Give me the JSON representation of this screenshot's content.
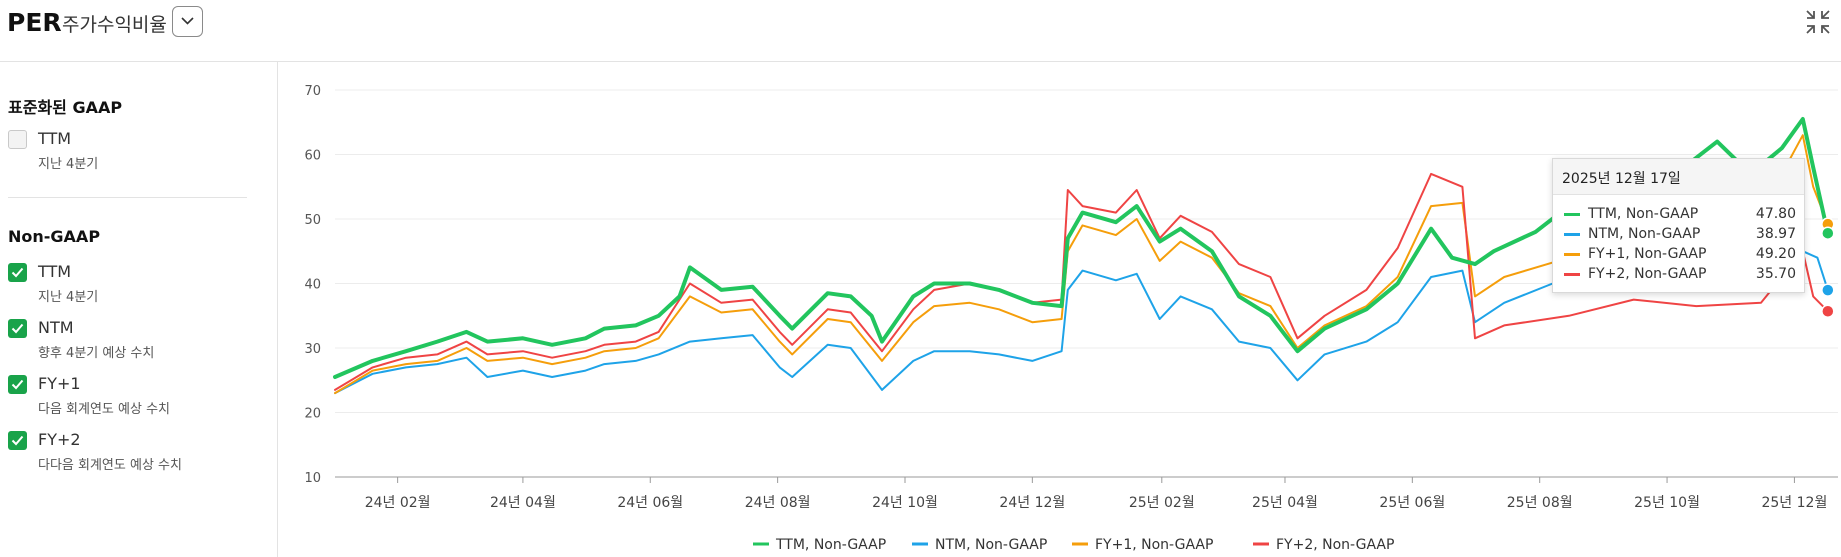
{
  "header": {
    "title": "PER",
    "subtitle": "주가수익비율"
  },
  "sidebar": {
    "groups": [
      {
        "title": "표준화된 GAAP",
        "options": [
          {
            "label": "TTM",
            "sub": "지난 4분기",
            "checked": false
          }
        ]
      },
      {
        "title": "Non-GAAP",
        "options": [
          {
            "label": "TTM",
            "sub": "지난 4분기",
            "checked": true
          },
          {
            "label": "NTM",
            "sub": "향후 4분기 예상 수치",
            "checked": true
          },
          {
            "label": "FY+1",
            "sub": "다음 회계연도 예상 수치",
            "checked": true
          },
          {
            "label": "FY+2",
            "sub": "다다음 회계연도 예상 수치",
            "checked": true
          }
        ]
      }
    ]
  },
  "tooltip": {
    "date": "2025년 12월 17일",
    "rows": [
      {
        "name": "TTM, Non-GAAP",
        "value": "47.80",
        "color": "#22c55e"
      },
      {
        "name": "NTM, Non-GAAP",
        "value": "38.97",
        "color": "#1ea3e8"
      },
      {
        "name": "FY+1, Non-GAAP",
        "value": "49.20",
        "color": "#f59e0b"
      },
      {
        "name": "FY+2, Non-GAAP",
        "value": "35.70",
        "color": "#ef4444"
      }
    ]
  },
  "chart_data": {
    "type": "line",
    "x_ticks": [
      "24년 02월",
      "24년 04월",
      "24년 06월",
      "24년 08월",
      "24년 10월",
      "24년 12월",
      "25년 02월",
      "25년 04월",
      "25년 06월",
      "25년 08월",
      "25년 10월",
      "25년 12월"
    ],
    "x_tick_dates": [
      "2024-02-01",
      "2024-04-01",
      "2024-06-01",
      "2024-08-01",
      "2024-10-01",
      "2024-12-01",
      "2025-02-01",
      "2025-04-01",
      "2025-06-01",
      "2025-08-01",
      "2025-10-01",
      "2025-12-01"
    ],
    "x_range": [
      "2024-01-02",
      "2025-12-19"
    ],
    "ylim": [
      10,
      70
    ],
    "y_ticks": [
      10,
      20,
      30,
      40,
      50,
      60,
      70
    ],
    "grid": "horizontal",
    "legend_position": "bottom",
    "series": [
      {
        "name": "TTM, Non-GAAP",
        "color": "#22c55e",
        "points": [
          [
            "2024-01-02",
            25.5
          ],
          [
            "2024-01-20",
            28
          ],
          [
            "2024-02-05",
            29.5
          ],
          [
            "2024-02-20",
            31
          ],
          [
            "2024-03-05",
            32.5
          ],
          [
            "2024-03-15",
            31
          ],
          [
            "2024-04-01",
            31.5
          ],
          [
            "2024-04-15",
            30.5
          ],
          [
            "2024-05-01",
            31.5
          ],
          [
            "2024-05-10",
            33
          ],
          [
            "2024-05-25",
            33.5
          ],
          [
            "2024-06-05",
            35
          ],
          [
            "2024-06-15",
            38
          ],
          [
            "2024-06-20",
            42.5
          ],
          [
            "2024-07-05",
            39
          ],
          [
            "2024-07-20",
            39.5
          ],
          [
            "2024-08-02",
            35
          ],
          [
            "2024-08-08",
            33
          ],
          [
            "2024-08-25",
            38.5
          ],
          [
            "2024-09-05",
            38
          ],
          [
            "2024-09-15",
            35
          ],
          [
            "2024-09-20",
            31
          ],
          [
            "2024-10-05",
            38
          ],
          [
            "2024-10-15",
            40
          ],
          [
            "2024-11-01",
            40
          ],
          [
            "2024-11-15",
            39
          ],
          [
            "2024-12-01",
            37
          ],
          [
            "2024-12-15",
            36.5
          ],
          [
            "2024-12-18",
            47
          ],
          [
            "2024-12-25",
            51
          ],
          [
            "2025-01-10",
            49.5
          ],
          [
            "2025-01-20",
            52
          ],
          [
            "2025-01-31",
            46.5
          ],
          [
            "2025-02-10",
            48.5
          ],
          [
            "2025-02-25",
            45
          ],
          [
            "2025-03-10",
            38
          ],
          [
            "2025-03-25",
            35
          ],
          [
            "2025-04-07",
            29.5
          ],
          [
            "2025-04-20",
            33
          ],
          [
            "2025-05-10",
            36
          ],
          [
            "2025-05-25",
            40
          ],
          [
            "2025-06-10",
            48.5
          ],
          [
            "2025-06-20",
            44
          ],
          [
            "2025-07-01",
            43
          ],
          [
            "2025-07-10",
            45
          ],
          [
            "2025-07-30",
            48
          ],
          [
            "2025-08-15",
            52
          ],
          [
            "2025-09-01",
            54
          ],
          [
            "2025-09-20",
            55
          ],
          [
            "2025-10-05",
            57
          ],
          [
            "2025-10-25",
            62
          ],
          [
            "2025-11-10",
            57
          ],
          [
            "2025-11-25",
            61
          ],
          [
            "2025-12-05",
            65.5
          ],
          [
            "2025-12-10",
            58
          ],
          [
            "2025-12-17",
            47.8
          ]
        ]
      },
      {
        "name": "NTM, Non-GAAP",
        "color": "#1ea3e8",
        "points": [
          [
            "2024-01-02",
            23
          ],
          [
            "2024-01-20",
            26
          ],
          [
            "2024-02-05",
            27
          ],
          [
            "2024-02-20",
            27.5
          ],
          [
            "2024-03-05",
            28.5
          ],
          [
            "2024-03-15",
            25.5
          ],
          [
            "2024-04-01",
            26.5
          ],
          [
            "2024-04-15",
            25.5
          ],
          [
            "2024-05-01",
            26.5
          ],
          [
            "2024-05-10",
            27.5
          ],
          [
            "2024-05-25",
            28
          ],
          [
            "2024-06-05",
            29
          ],
          [
            "2024-06-20",
            31
          ],
          [
            "2024-07-05",
            31.5
          ],
          [
            "2024-07-20",
            32
          ],
          [
            "2024-08-02",
            27
          ],
          [
            "2024-08-08",
            25.5
          ],
          [
            "2024-08-25",
            30.5
          ],
          [
            "2024-09-05",
            30
          ],
          [
            "2024-09-20",
            23.5
          ],
          [
            "2024-10-05",
            28
          ],
          [
            "2024-10-15",
            29.5
          ],
          [
            "2024-11-01",
            29.5
          ],
          [
            "2024-11-15",
            29
          ],
          [
            "2024-12-01",
            28
          ],
          [
            "2024-12-15",
            29.5
          ],
          [
            "2024-12-18",
            39
          ],
          [
            "2024-12-25",
            42
          ],
          [
            "2025-01-10",
            40.5
          ],
          [
            "2025-01-20",
            41.5
          ],
          [
            "2025-01-31",
            34.5
          ],
          [
            "2025-02-10",
            38
          ],
          [
            "2025-02-25",
            36
          ],
          [
            "2025-03-10",
            31
          ],
          [
            "2025-03-25",
            30
          ],
          [
            "2025-04-07",
            25
          ],
          [
            "2025-04-20",
            29
          ],
          [
            "2025-05-10",
            31
          ],
          [
            "2025-05-25",
            34
          ],
          [
            "2025-06-10",
            41
          ],
          [
            "2025-06-25",
            42
          ],
          [
            "2025-07-01",
            34
          ],
          [
            "2025-07-15",
            37
          ],
          [
            "2025-08-15",
            41
          ],
          [
            "2025-09-15",
            42
          ],
          [
            "2025-10-15",
            41.5
          ],
          [
            "2025-11-15",
            44
          ],
          [
            "2025-12-05",
            45
          ],
          [
            "2025-12-12",
            44
          ],
          [
            "2025-12-17",
            38.97
          ]
        ]
      },
      {
        "name": "FY+1, Non-GAAP",
        "color": "#f59e0b",
        "points": [
          [
            "2024-01-02",
            23
          ],
          [
            "2024-01-20",
            26.5
          ],
          [
            "2024-02-05",
            27.5
          ],
          [
            "2024-02-20",
            28
          ],
          [
            "2024-03-05",
            30
          ],
          [
            "2024-03-15",
            28
          ],
          [
            "2024-04-01",
            28.5
          ],
          [
            "2024-04-15",
            27.5
          ],
          [
            "2024-05-01",
            28.5
          ],
          [
            "2024-05-10",
            29.5
          ],
          [
            "2024-05-25",
            30
          ],
          [
            "2024-06-05",
            31.5
          ],
          [
            "2024-06-20",
            38
          ],
          [
            "2024-07-05",
            35.5
          ],
          [
            "2024-07-20",
            36
          ],
          [
            "2024-08-02",
            31
          ],
          [
            "2024-08-08",
            29
          ],
          [
            "2024-08-25",
            34.5
          ],
          [
            "2024-09-05",
            34
          ],
          [
            "2024-09-20",
            28
          ],
          [
            "2024-10-05",
            34
          ],
          [
            "2024-10-15",
            36.5
          ],
          [
            "2024-11-01",
            37
          ],
          [
            "2024-11-15",
            36
          ],
          [
            "2024-12-01",
            34
          ],
          [
            "2024-12-15",
            34.5
          ],
          [
            "2024-12-18",
            45
          ],
          [
            "2024-12-25",
            49
          ],
          [
            "2025-01-10",
            47.5
          ],
          [
            "2025-01-20",
            50
          ],
          [
            "2025-01-31",
            43.5
          ],
          [
            "2025-02-10",
            46.5
          ],
          [
            "2025-02-25",
            44
          ],
          [
            "2025-03-10",
            38.5
          ],
          [
            "2025-03-25",
            36.5
          ],
          [
            "2025-04-07",
            30
          ],
          [
            "2025-04-20",
            33.5
          ],
          [
            "2025-05-10",
            36.5
          ],
          [
            "2025-05-25",
            41
          ],
          [
            "2025-06-10",
            52
          ],
          [
            "2025-06-25",
            52.5
          ],
          [
            "2025-07-01",
            38
          ],
          [
            "2025-07-15",
            41
          ],
          [
            "2025-08-15",
            44
          ],
          [
            "2025-09-15",
            46.5
          ],
          [
            "2025-10-15",
            48
          ],
          [
            "2025-11-15",
            51
          ],
          [
            "2025-12-05",
            63
          ],
          [
            "2025-12-10",
            55
          ],
          [
            "2025-12-17",
            49.2
          ]
        ]
      },
      {
        "name": "FY+2, Non-GAAP",
        "color": "#ef4444",
        "points": [
          [
            "2024-01-02",
            23.5
          ],
          [
            "2024-01-20",
            27
          ],
          [
            "2024-02-05",
            28.5
          ],
          [
            "2024-02-20",
            29
          ],
          [
            "2024-03-05",
            31
          ],
          [
            "2024-03-15",
            29
          ],
          [
            "2024-04-01",
            29.5
          ],
          [
            "2024-04-15",
            28.5
          ],
          [
            "2024-05-01",
            29.5
          ],
          [
            "2024-05-10",
            30.5
          ],
          [
            "2024-05-25",
            31
          ],
          [
            "2024-06-05",
            32.5
          ],
          [
            "2024-06-20",
            40
          ],
          [
            "2024-07-05",
            37
          ],
          [
            "2024-07-20",
            37.5
          ],
          [
            "2024-08-02",
            32.5
          ],
          [
            "2024-08-08",
            30.5
          ],
          [
            "2024-08-25",
            36
          ],
          [
            "2024-09-05",
            35.5
          ],
          [
            "2024-09-20",
            29.5
          ],
          [
            "2024-10-05",
            36
          ],
          [
            "2024-10-15",
            39
          ],
          [
            "2024-11-01",
            40
          ],
          [
            "2024-11-15",
            39
          ],
          [
            "2024-12-01",
            37
          ],
          [
            "2024-12-15",
            37.5
          ],
          [
            "2024-12-18",
            54.5
          ],
          [
            "2024-12-25",
            52
          ],
          [
            "2025-01-10",
            51
          ],
          [
            "2025-01-20",
            54.5
          ],
          [
            "2025-01-31",
            47
          ],
          [
            "2025-02-10",
            50.5
          ],
          [
            "2025-02-25",
            48
          ],
          [
            "2025-03-10",
            43
          ],
          [
            "2025-03-25",
            41
          ],
          [
            "2025-04-07",
            31.5
          ],
          [
            "2025-04-20",
            35
          ],
          [
            "2025-05-10",
            39
          ],
          [
            "2025-05-25",
            45.5
          ],
          [
            "2025-06-10",
            57
          ],
          [
            "2025-06-25",
            55
          ],
          [
            "2025-07-01",
            31.5
          ],
          [
            "2025-07-15",
            33.5
          ],
          [
            "2025-08-15",
            35
          ],
          [
            "2025-09-15",
            37.5
          ],
          [
            "2025-10-15",
            36.5
          ],
          [
            "2025-11-15",
            37
          ],
          [
            "2025-12-05",
            45
          ],
          [
            "2025-12-10",
            38
          ],
          [
            "2025-12-17",
            35.7
          ]
        ]
      }
    ]
  }
}
